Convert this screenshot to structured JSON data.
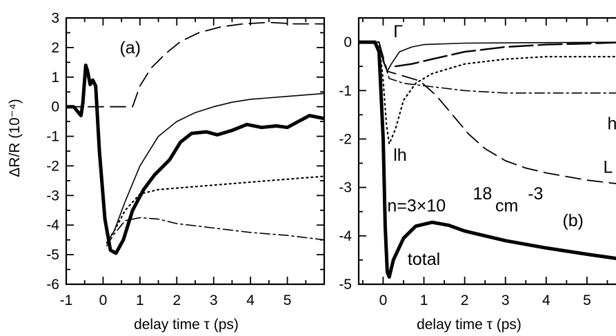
{
  "chart_data": [
    {
      "panel": "(a)",
      "type": "line",
      "xlabel": "delay time τ (ps)",
      "ylabel": "ΔR/R (10⁻⁴)",
      "xlim": [
        -1,
        6
      ],
      "ylim": [
        -6,
        3
      ],
      "x_ticks": [
        "-1",
        "0",
        "1",
        "2",
        "3",
        "4",
        "5"
      ],
      "y_ticks": [
        "3",
        "2",
        "1",
        "0",
        "-1",
        "-2",
        "-3",
        "-4",
        "-5",
        "-6"
      ],
      "annotations": [
        {
          "text": "(a)",
          "x": 0.45,
          "y": 1.8
        }
      ],
      "series": [
        {
          "style": "thick-solid",
          "points": [
            [
              -1.0,
              0
            ],
            [
              -0.8,
              0
            ],
            [
              -0.6,
              -0.3
            ],
            [
              -0.55,
              0.1
            ],
            [
              -0.47,
              1.4
            ],
            [
              -0.42,
              1.2
            ],
            [
              -0.35,
              0.75
            ],
            [
              -0.28,
              0.9
            ],
            [
              -0.2,
              0.7
            ],
            [
              -0.1,
              -1.5
            ],
            [
              0.05,
              -3.8
            ],
            [
              0.2,
              -4.85
            ],
            [
              0.35,
              -4.95
            ],
            [
              0.55,
              -4.5
            ],
            [
              0.8,
              -3.5
            ],
            [
              1.1,
              -2.8
            ],
            [
              1.4,
              -2.3
            ],
            [
              1.8,
              -1.8
            ],
            [
              2.1,
              -1.2
            ],
            [
              2.4,
              -0.9
            ],
            [
              2.8,
              -0.85
            ],
            [
              3.1,
              -0.95
            ],
            [
              3.5,
              -0.8
            ],
            [
              3.9,
              -0.6
            ],
            [
              4.3,
              -0.7
            ],
            [
              4.7,
              -0.65
            ],
            [
              5.0,
              -0.7
            ],
            [
              5.3,
              -0.5
            ],
            [
              5.6,
              -0.3
            ],
            [
              6.0,
              -0.4
            ]
          ]
        },
        {
          "style": "thin-solid",
          "points": [
            [
              0.1,
              -4.6
            ],
            [
              0.3,
              -4.2
            ],
            [
              0.6,
              -3.2
            ],
            [
              1.0,
              -2.0
            ],
            [
              1.5,
              -1.0
            ],
            [
              2.0,
              -0.5
            ],
            [
              2.5,
              -0.2
            ],
            [
              3.0,
              0.0
            ],
            [
              3.5,
              0.15
            ],
            [
              4.0,
              0.25
            ],
            [
              5.0,
              0.35
            ],
            [
              6.0,
              0.45
            ]
          ]
        },
        {
          "style": "dashed",
          "points": [
            [
              -1.0,
              0
            ],
            [
              0.8,
              0
            ],
            [
              1.0,
              0.7
            ],
            [
              1.3,
              1.3
            ],
            [
              1.7,
              1.8
            ],
            [
              2.1,
              2.2
            ],
            [
              2.6,
              2.5
            ],
            [
              3.2,
              2.7
            ],
            [
              3.8,
              2.8
            ],
            [
              4.5,
              2.85
            ],
            [
              5.2,
              2.8
            ],
            [
              6.0,
              2.8
            ]
          ]
        },
        {
          "style": "dotted",
          "points": [
            [
              0.1,
              -4.6
            ],
            [
              0.3,
              -4.2
            ],
            [
              0.6,
              -3.5
            ],
            [
              1.0,
              -2.95
            ],
            [
              1.5,
              -2.8
            ],
            [
              2.0,
              -2.75
            ],
            [
              3.0,
              -2.65
            ],
            [
              4.0,
              -2.55
            ],
            [
              5.0,
              -2.45
            ],
            [
              6.0,
              -2.35
            ]
          ]
        },
        {
          "style": "dash-dot",
          "points": [
            [
              0.1,
              -4.7
            ],
            [
              0.3,
              -4.3
            ],
            [
              0.6,
              -3.85
            ],
            [
              1.0,
              -3.75
            ],
            [
              1.5,
              -3.8
            ],
            [
              2.0,
              -3.95
            ],
            [
              3.0,
              -4.1
            ],
            [
              4.0,
              -4.25
            ],
            [
              5.0,
              -4.35
            ],
            [
              6.0,
              -4.5
            ]
          ]
        }
      ]
    },
    {
      "panel": "(b)",
      "type": "line",
      "xlabel": "delay time τ (ps)",
      "ylabel": "",
      "xlim": [
        -0.6,
        6
      ],
      "ylim": [
        -5,
        0.5
      ],
      "x_ticks": [
        "0",
        "1",
        "2",
        "3",
        "4",
        "5"
      ],
      "y_ticks": [
        "0",
        "-1",
        "-2",
        "-3",
        "-4",
        "-5"
      ],
      "annotations": [
        {
          "text": "Γ",
          "x": 0.25,
          "y": 0.1
        },
        {
          "text": "lh",
          "x": 0.25,
          "y": -2.45
        },
        {
          "text": "hh",
          "x": 5.5,
          "y": -1.8
        },
        {
          "text": "L",
          "x": 5.4,
          "y": -2.7
        },
        {
          "text": "n=3×10",
          "x": 0.1,
          "y": -3.5
        },
        {
          "text": "18",
          "x": 2.2,
          "y": -3.25
        },
        {
          "text": "cm",
          "x": 2.75,
          "y": -3.5
        },
        {
          "text": "-3",
          "x": 3.55,
          "y": -3.25
        },
        {
          "text": "(b)",
          "x": 4.4,
          "y": -3.8
        },
        {
          "text": "total",
          "x": 0.6,
          "y": -4.6
        }
      ],
      "series": [
        {
          "name": "total",
          "style": "thick-solid",
          "points": [
            [
              -0.6,
              0
            ],
            [
              -0.2,
              0
            ],
            [
              -0.1,
              -0.2
            ],
            [
              0.0,
              -2.0
            ],
            [
              0.05,
              -3.8
            ],
            [
              0.1,
              -4.75
            ],
            [
              0.15,
              -4.85
            ],
            [
              0.25,
              -4.5
            ],
            [
              0.5,
              -4.05
            ],
            [
              0.8,
              -3.8
            ],
            [
              1.2,
              -3.72
            ],
            [
              1.6,
              -3.78
            ],
            [
              2.0,
              -3.9
            ],
            [
              3.0,
              -4.1
            ],
            [
              4.0,
              -4.25
            ],
            [
              5.0,
              -4.38
            ],
            [
              6.0,
              -4.5
            ]
          ]
        },
        {
          "name": "Γ",
          "style": "thin-solid",
          "points": [
            [
              -0.6,
              0
            ],
            [
              -0.1,
              0
            ],
            [
              0.0,
              -0.4
            ],
            [
              0.1,
              -0.6
            ],
            [
              0.2,
              -0.45
            ],
            [
              0.4,
              -0.2
            ],
            [
              0.7,
              -0.1
            ],
            [
              1.0,
              -0.05
            ],
            [
              2.0,
              -0.02
            ],
            [
              6.0,
              0
            ]
          ]
        },
        {
          "name": "L",
          "style": "dashed",
          "points": [
            [
              -0.6,
              0
            ],
            [
              -0.1,
              0
            ],
            [
              0.1,
              -0.6
            ],
            [
              0.5,
              -0.7
            ],
            [
              0.9,
              -0.8
            ],
            [
              1.3,
              -1.1
            ],
            [
              1.7,
              -1.5
            ],
            [
              2.1,
              -1.9
            ],
            [
              2.5,
              -2.2
            ],
            [
              3.0,
              -2.45
            ],
            [
              3.5,
              -2.6
            ],
            [
              4.0,
              -2.7
            ],
            [
              5.0,
              -2.85
            ],
            [
              6.0,
              -2.95
            ]
          ]
        },
        {
          "name": "lh",
          "style": "dotted",
          "points": [
            [
              -0.6,
              0
            ],
            [
              -0.1,
              0
            ],
            [
              0.0,
              -0.8
            ],
            [
              0.08,
              -1.7
            ],
            [
              0.15,
              -2.1
            ],
            [
              0.3,
              -1.8
            ],
            [
              0.5,
              -1.2
            ],
            [
              0.8,
              -0.85
            ],
            [
              1.2,
              -0.65
            ],
            [
              2.0,
              -0.45
            ],
            [
              3.0,
              -0.35
            ],
            [
              4.0,
              -0.3
            ],
            [
              5.0,
              -0.3
            ],
            [
              6.0,
              -0.3
            ]
          ]
        },
        {
          "name": "hh",
          "style": "dash-dot",
          "points": [
            [
              -0.6,
              0
            ],
            [
              -0.1,
              0
            ],
            [
              0.05,
              -0.5
            ],
            [
              0.15,
              -0.75
            ],
            [
              0.5,
              -0.85
            ],
            [
              1.0,
              -0.9
            ],
            [
              2.0,
              -1.0
            ],
            [
              3.0,
              -1.05
            ],
            [
              4.0,
              -1.05
            ],
            [
              5.0,
              -1.05
            ],
            [
              6.0,
              -1.05
            ]
          ]
        },
        {
          "style": "long-dash",
          "points": [
            [
              0.3,
              -0.5
            ],
            [
              0.7,
              -0.45
            ],
            [
              1.2,
              -0.35
            ],
            [
              2.0,
              -0.2
            ],
            [
              3.0,
              -0.1
            ],
            [
              4.0,
              -0.05
            ],
            [
              5.0,
              -0.03
            ],
            [
              6.0,
              0
            ]
          ]
        }
      ]
    }
  ]
}
